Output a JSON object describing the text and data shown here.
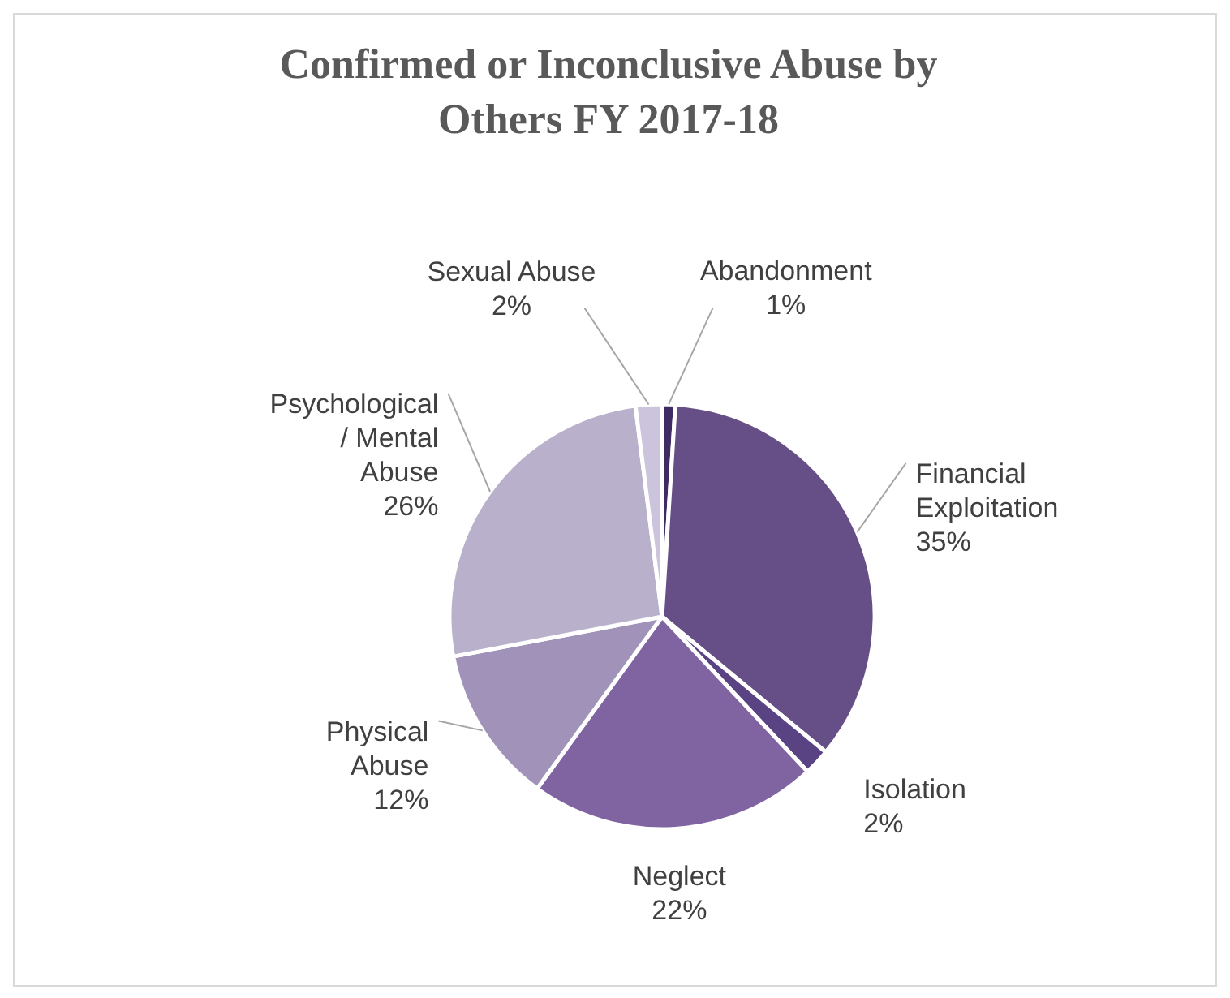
{
  "chart_data": {
    "type": "pie",
    "title": "Confirmed or Inconclusive Abuse by Others FY 2017-18",
    "categories": [
      "Abandonment",
      "Financial Exploitation",
      "Isolation",
      "Neglect",
      "Physical Abuse",
      "Psychological / Mental Abuse",
      "Sexual Abuse"
    ],
    "values": [
      1,
      35,
      2,
      22,
      12,
      26,
      2
    ],
    "colors": [
      "#3f2b63",
      "#664f86",
      "#5a4383",
      "#8064a2",
      "#a092b8",
      "#b9b0cc",
      "#cbc4dc"
    ],
    "value_labels": [
      "1%",
      "35%",
      "2%",
      "22%",
      "12%",
      "26%",
      "2%"
    ]
  }
}
